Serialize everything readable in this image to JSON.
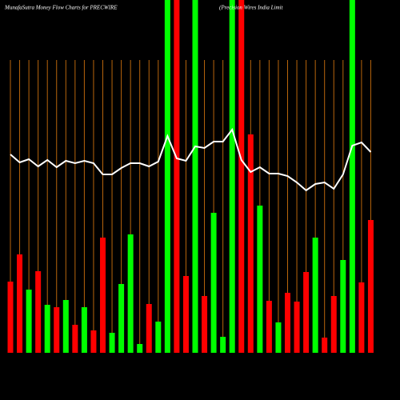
{
  "chart_data": {
    "type": "bar",
    "title": "MunafaSutra  Money Flow  Charts for PRECWIRE",
    "subtitle": "(Precision  Wires India  Limit",
    "categories": [
      null,
      null,
      null,
      null,
      null,
      null,
      null,
      null,
      null,
      null,
      null,
      null,
      null,
      null,
      null,
      null,
      null,
      null,
      null,
      null,
      null,
      null,
      null,
      null,
      null,
      null,
      null,
      null,
      null,
      null,
      null,
      null,
      null,
      null,
      null,
      null,
      null,
      null,
      null,
      null
    ],
    "values": [
      89,
      123,
      79,
      102,
      60,
      57,
      66,
      35,
      57,
      28,
      144,
      25,
      86,
      148,
      11,
      61,
      39,
      441,
      441,
      96,
      441,
      71,
      175,
      20,
      441,
      441,
      273,
      184,
      65,
      38,
      75,
      64,
      101,
      144,
      19,
      71,
      116,
      441,
      88,
      166
    ],
    "bar_colors": [
      "#ff0000",
      "#ff0000",
      "#00ff00",
      "#ff0000",
      "#00ff00",
      "#ff0000",
      "#00ff00",
      "#ff0000",
      "#00ff00",
      "#ff0000",
      "#ff0000",
      "#00ff00",
      "#00ff00",
      "#00ff00",
      "#00ff00",
      "#ff0000",
      "#00ff00",
      "#00ff00",
      "#ff0000",
      "#ff0000",
      "#00ff00",
      "#ff0000",
      "#00ff00",
      "#00ff00",
      "#00ff00",
      "#ff0000",
      "#ff0000",
      "#00ff00",
      "#ff0000",
      "#00ff00",
      "#ff0000",
      "#ff0000",
      "#ff0000",
      "#00ff00",
      "#ff0000",
      "#ff0000",
      "#00ff00",
      "#00ff00",
      "#ff0000",
      "#ff0000"
    ],
    "line_values": [
      248,
      238,
      242,
      233,
      241,
      232,
      240,
      237,
      240,
      237,
      223,
      223,
      231,
      237,
      237,
      233,
      239,
      271,
      243,
      240,
      258,
      256,
      264,
      264,
      279,
      241,
      226,
      232,
      224,
      224,
      221,
      213,
      203,
      211,
      213,
      205,
      223,
      259,
      263,
      251
    ],
    "line_color": "#ffffff",
    "ylim": [
      0,
      441
    ],
    "grid": true,
    "grid_color": "#b8650c"
  }
}
